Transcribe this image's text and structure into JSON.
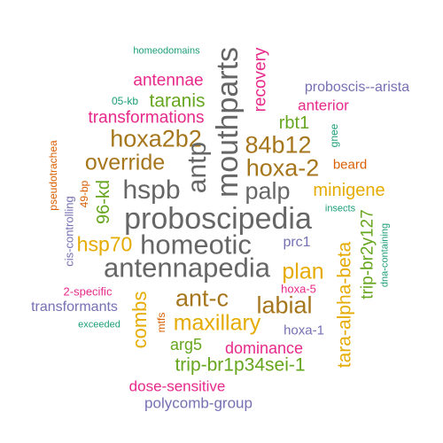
{
  "colors": {
    "teal": "#1b9e77",
    "orange": "#d95f02",
    "purple": "#7570b3",
    "magenta": "#e7298a",
    "green": "#66a61e",
    "gold": "#e6ab02",
    "brown": "#a6761d",
    "gray": "#666666"
  },
  "words": [
    {
      "text": "homeodomains",
      "color": "teal",
      "rot": 0
    },
    {
      "text": "recovery",
      "color": "magenta",
      "rot": 90
    },
    {
      "text": "mouthparts",
      "color": "gray",
      "rot": 90
    },
    {
      "text": "antennae",
      "color": "magenta",
      "rot": 0
    },
    {
      "text": "proboscis--arista",
      "color": "purple",
      "rot": 0
    },
    {
      "text": "05-kb",
      "color": "teal",
      "rot": 0
    },
    {
      "text": "taranis",
      "color": "green",
      "rot": 0
    },
    {
      "text": "anterior",
      "color": "magenta",
      "rot": 0
    },
    {
      "text": "transformations",
      "color": "magenta",
      "rot": 0
    },
    {
      "text": "rbt1",
      "color": "green",
      "rot": 0
    },
    {
      "text": "gnee",
      "color": "teal",
      "rot": 90
    },
    {
      "text": "hoxa2b2",
      "color": "brown",
      "rot": 0
    },
    {
      "text": "84b12",
      "color": "brown",
      "rot": 0
    },
    {
      "text": "pseudotrachea",
      "color": "orange",
      "rot": 90
    },
    {
      "text": "antp",
      "color": "gray",
      "rot": 90
    },
    {
      "text": "override",
      "color": "brown",
      "rot": 0
    },
    {
      "text": "hoxa-2",
      "color": "brown",
      "rot": 0
    },
    {
      "text": "beard",
      "color": "orange",
      "rot": 0
    },
    {
      "text": "hspb",
      "color": "gray",
      "rot": 0
    },
    {
      "text": "palp",
      "color": "gray",
      "rot": 0
    },
    {
      "text": "minigene",
      "color": "gold",
      "rot": 0
    },
    {
      "text": "49-bp",
      "color": "orange",
      "rot": 90
    },
    {
      "text": "96-kd",
      "color": "green",
      "rot": 90
    },
    {
      "text": "insects",
      "color": "teal",
      "rot": 0
    },
    {
      "text": "trip-br2y127",
      "color": "green",
      "rot": 90
    },
    {
      "text": "proboscipedia",
      "color": "gray",
      "rot": 0
    },
    {
      "text": "cis-controlling",
      "color": "purple",
      "rot": 90
    },
    {
      "text": "dna-containing",
      "color": "teal",
      "rot": 90
    },
    {
      "text": "hsp70",
      "color": "gold",
      "rot": 0
    },
    {
      "text": "homeotic",
      "color": "gray",
      "rot": 0
    },
    {
      "text": "prc1",
      "color": "purple",
      "rot": 0
    },
    {
      "text": "antennapedia",
      "color": "gray",
      "rot": 0
    },
    {
      "text": "plan",
      "color": "gold",
      "rot": 0
    },
    {
      "text": "tara-alpha-beta",
      "color": "gold",
      "rot": 90
    },
    {
      "text": "2-specific",
      "color": "magenta",
      "rot": 0
    },
    {
      "text": "ant-c",
      "color": "brown",
      "rot": 0
    },
    {
      "text": "labial",
      "color": "brown",
      "rot": 0
    },
    {
      "text": "hoxa-5",
      "color": "magenta",
      "rot": 0
    },
    {
      "text": "transformants",
      "color": "purple",
      "rot": 0
    },
    {
      "text": "combs",
      "color": "gold",
      "rot": 90
    },
    {
      "text": "mtfs",
      "color": "orange",
      "rot": 90
    },
    {
      "text": "maxillary",
      "color": "gold",
      "rot": 0
    },
    {
      "text": "exceeded",
      "color": "teal",
      "rot": 0
    },
    {
      "text": "hoxa-1",
      "color": "purple",
      "rot": 0
    },
    {
      "text": "arg5",
      "color": "green",
      "rot": 0
    },
    {
      "text": "dominance",
      "color": "magenta",
      "rot": 0
    },
    {
      "text": "trip-br1p34sei-1",
      "color": "green",
      "rot": 0
    },
    {
      "text": "dose-sensitive",
      "color": "magenta",
      "rot": 0
    },
    {
      "text": "polycomb-group",
      "color": "purple",
      "rot": 0
    }
  ]
}
